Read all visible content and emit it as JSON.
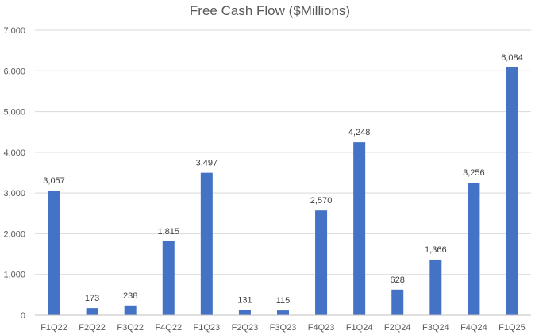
{
  "chart_data": {
    "type": "bar",
    "title": "Free Cash Flow ($Millions)",
    "xlabel": "",
    "ylabel": "",
    "categories": [
      "F1Q22",
      "F2Q22",
      "F3Q22",
      "F4Q22",
      "F1Q23",
      "F2Q23",
      "F3Q23",
      "F4Q23",
      "F1Q24",
      "F2Q24",
      "F3Q24",
      "F4Q24",
      "F1Q25"
    ],
    "values": [
      3057,
      173,
      238,
      1815,
      3497,
      131,
      115,
      2570,
      4248,
      628,
      1366,
      3256,
      6084
    ],
    "value_labels": [
      "3,057",
      "173",
      "238",
      "1,815",
      "3,497",
      "131",
      "115",
      "2,570",
      "4,248",
      "628",
      "1,366",
      "3,256",
      "6,084"
    ],
    "ylim": [
      0,
      7000
    ],
    "yticks": [
      0,
      1000,
      2000,
      3000,
      4000,
      5000,
      6000,
      7000
    ],
    "ytick_labels": [
      "0",
      "1,000",
      "2,000",
      "3,000",
      "4,000",
      "5,000",
      "6,000",
      "7,000"
    ],
    "grid": true,
    "legend": "none",
    "bar_color": "#4472C4"
  }
}
